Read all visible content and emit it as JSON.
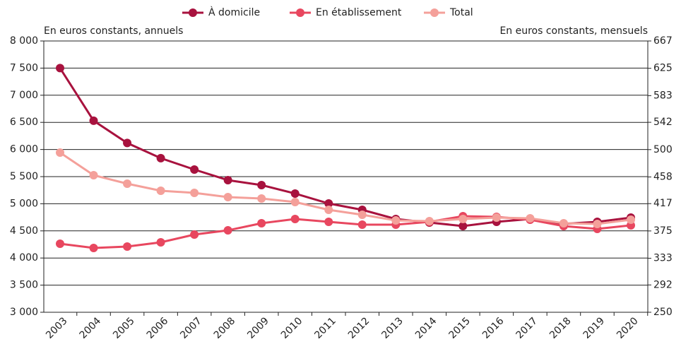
{
  "chart_data": {
    "type": "line",
    "ylabel": "En euros constants, annuels",
    "y2label": "En euros constants, mensuels",
    "categories": [
      "2003",
      "2004",
      "2005",
      "2006",
      "2007",
      "2008",
      "2009",
      "2010",
      "2011",
      "2012",
      "2013",
      "2014",
      "2015",
      "2016",
      "2017",
      "2018",
      "2019",
      "2020"
    ],
    "series": [
      {
        "name": "À domicile",
        "color": "#a8123e",
        "values": [
          7500,
          6530,
          6120,
          5840,
          5630,
          5435,
          5344,
          5188,
          5005,
          4888,
          4719,
          4654,
          4589,
          4667,
          4719,
          4630,
          4667,
          4745
        ]
      },
      {
        "name": "En établissement",
        "color": "#e8475f",
        "values": [
          4263,
          4185,
          4211,
          4289,
          4432,
          4510,
          4641,
          4719,
          4667,
          4615,
          4615,
          4667,
          4771,
          4758,
          4706,
          4589,
          4536,
          4602
        ]
      },
      {
        "name": "Total",
        "color": "#f4a09a",
        "values": [
          5943,
          5526,
          5370,
          5240,
          5201,
          5122,
          5096,
          5031,
          4888,
          4797,
          4693,
          4680,
          4719,
          4745,
          4732,
          4641,
          4628,
          4706
        ]
      }
    ],
    "ylim": [
      3000,
      8000
    ],
    "yticks": [
      {
        "value": 3000,
        "label": "3 000"
      },
      {
        "value": 3500,
        "label": "3 500"
      },
      {
        "value": 4000,
        "label": "4 000"
      },
      {
        "value": 4500,
        "label": "4 500"
      },
      {
        "value": 5000,
        "label": "5 000"
      },
      {
        "value": 5500,
        "label": "5 500"
      },
      {
        "value": 6000,
        "label": "6 000"
      },
      {
        "value": 6500,
        "label": "6 500"
      },
      {
        "value": 7000,
        "label": "7 000"
      },
      {
        "value": 7500,
        "label": "7 500"
      },
      {
        "value": 8000,
        "label": "8 000"
      }
    ],
    "y2lim": [
      250,
      667
    ],
    "y2ticks": [
      250,
      292,
      333,
      375,
      417,
      458,
      500,
      542,
      583,
      625,
      667
    ],
    "grid": true,
    "legend": "top"
  }
}
